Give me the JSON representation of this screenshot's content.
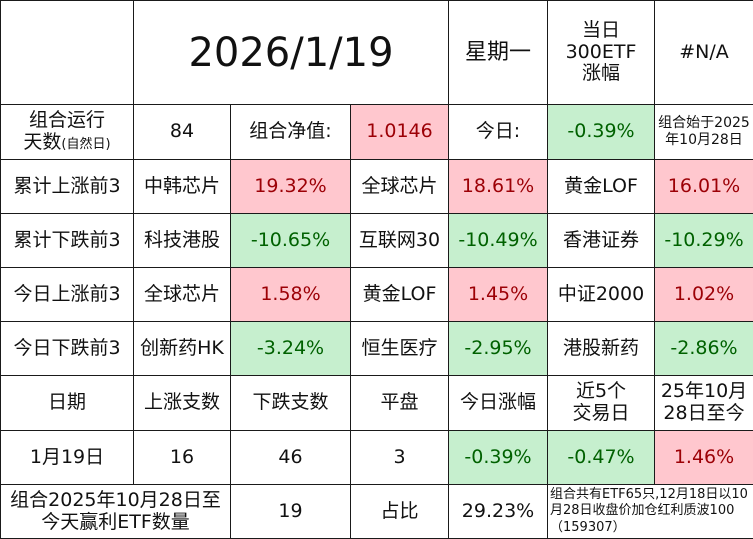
{
  "header": {
    "date": "2026/1/19",
    "weekday": "星期一",
    "etf_label_1": "当日",
    "etf_label_2": "300ETF",
    "etf_label_3": "涨幅",
    "etf_value": "#N/A"
  },
  "summary": {
    "run_days_label": "组合运行",
    "run_days_label_2": "天数",
    "run_days_note": "(自然日)",
    "run_days": "84",
    "nav_label": "组合净值:",
    "nav": "1.0146",
    "today_label": "今日:",
    "today": "-0.39%",
    "start_note_1": "组合始于2025",
    "start_note_2": "年10月28日"
  },
  "rankings": [
    {
      "label": "累计上涨前3",
      "items": [
        {
          "name": "中韩芯片",
          "value": "19.32%",
          "sign": "pos"
        },
        {
          "name": "全球芯片",
          "value": "18.61%",
          "sign": "pos"
        },
        {
          "name": "黄金LOF",
          "value": "16.01%",
          "sign": "pos"
        }
      ]
    },
    {
      "label": "累计下跌前3",
      "items": [
        {
          "name": "科技港股",
          "value": "-10.65%",
          "sign": "neg"
        },
        {
          "name": "互联网30",
          "value": "-10.49%",
          "sign": "neg"
        },
        {
          "name": "香港证券",
          "value": "-10.29%",
          "sign": "neg"
        }
      ]
    },
    {
      "label": "今日上涨前3",
      "items": [
        {
          "name": "全球芯片",
          "value": "1.58%",
          "sign": "pos"
        },
        {
          "name": "黄金LOF",
          "value": "1.45%",
          "sign": "pos"
        },
        {
          "name": "中证2000",
          "value": "1.02%",
          "sign": "pos"
        }
      ]
    },
    {
      "label": "今日下跌前3",
      "items": [
        {
          "name": "创新药HK",
          "value": "-3.24%",
          "sign": "neg"
        },
        {
          "name": "恒生医疗",
          "value": "-2.95%",
          "sign": "neg"
        },
        {
          "name": "港股新药",
          "value": "-2.86%",
          "sign": "neg"
        }
      ]
    }
  ],
  "stats": {
    "headers": [
      "日期",
      "上涨支数",
      "下跌支数",
      "平盘",
      "今日涨幅"
    ],
    "h_recent_1": "近5个",
    "h_recent_2": "交易日",
    "h_since_1": "25年10月",
    "h_since_2": "28日至今",
    "row": {
      "date": "1月19日",
      "up": "16",
      "down": "46",
      "flat": "3",
      "today": "-0.39%",
      "recent5": "-0.47%",
      "since": "1.46%"
    }
  },
  "footer": {
    "label_1": "组合2025年10月28日至",
    "label_2": "今天赢利ETF数量",
    "count": "19",
    "ratio_label": "占比",
    "ratio": "29.23%",
    "note": "组合共有ETF65只,12月18日以10月28日收盘价加仓红利质波100（159307）"
  }
}
